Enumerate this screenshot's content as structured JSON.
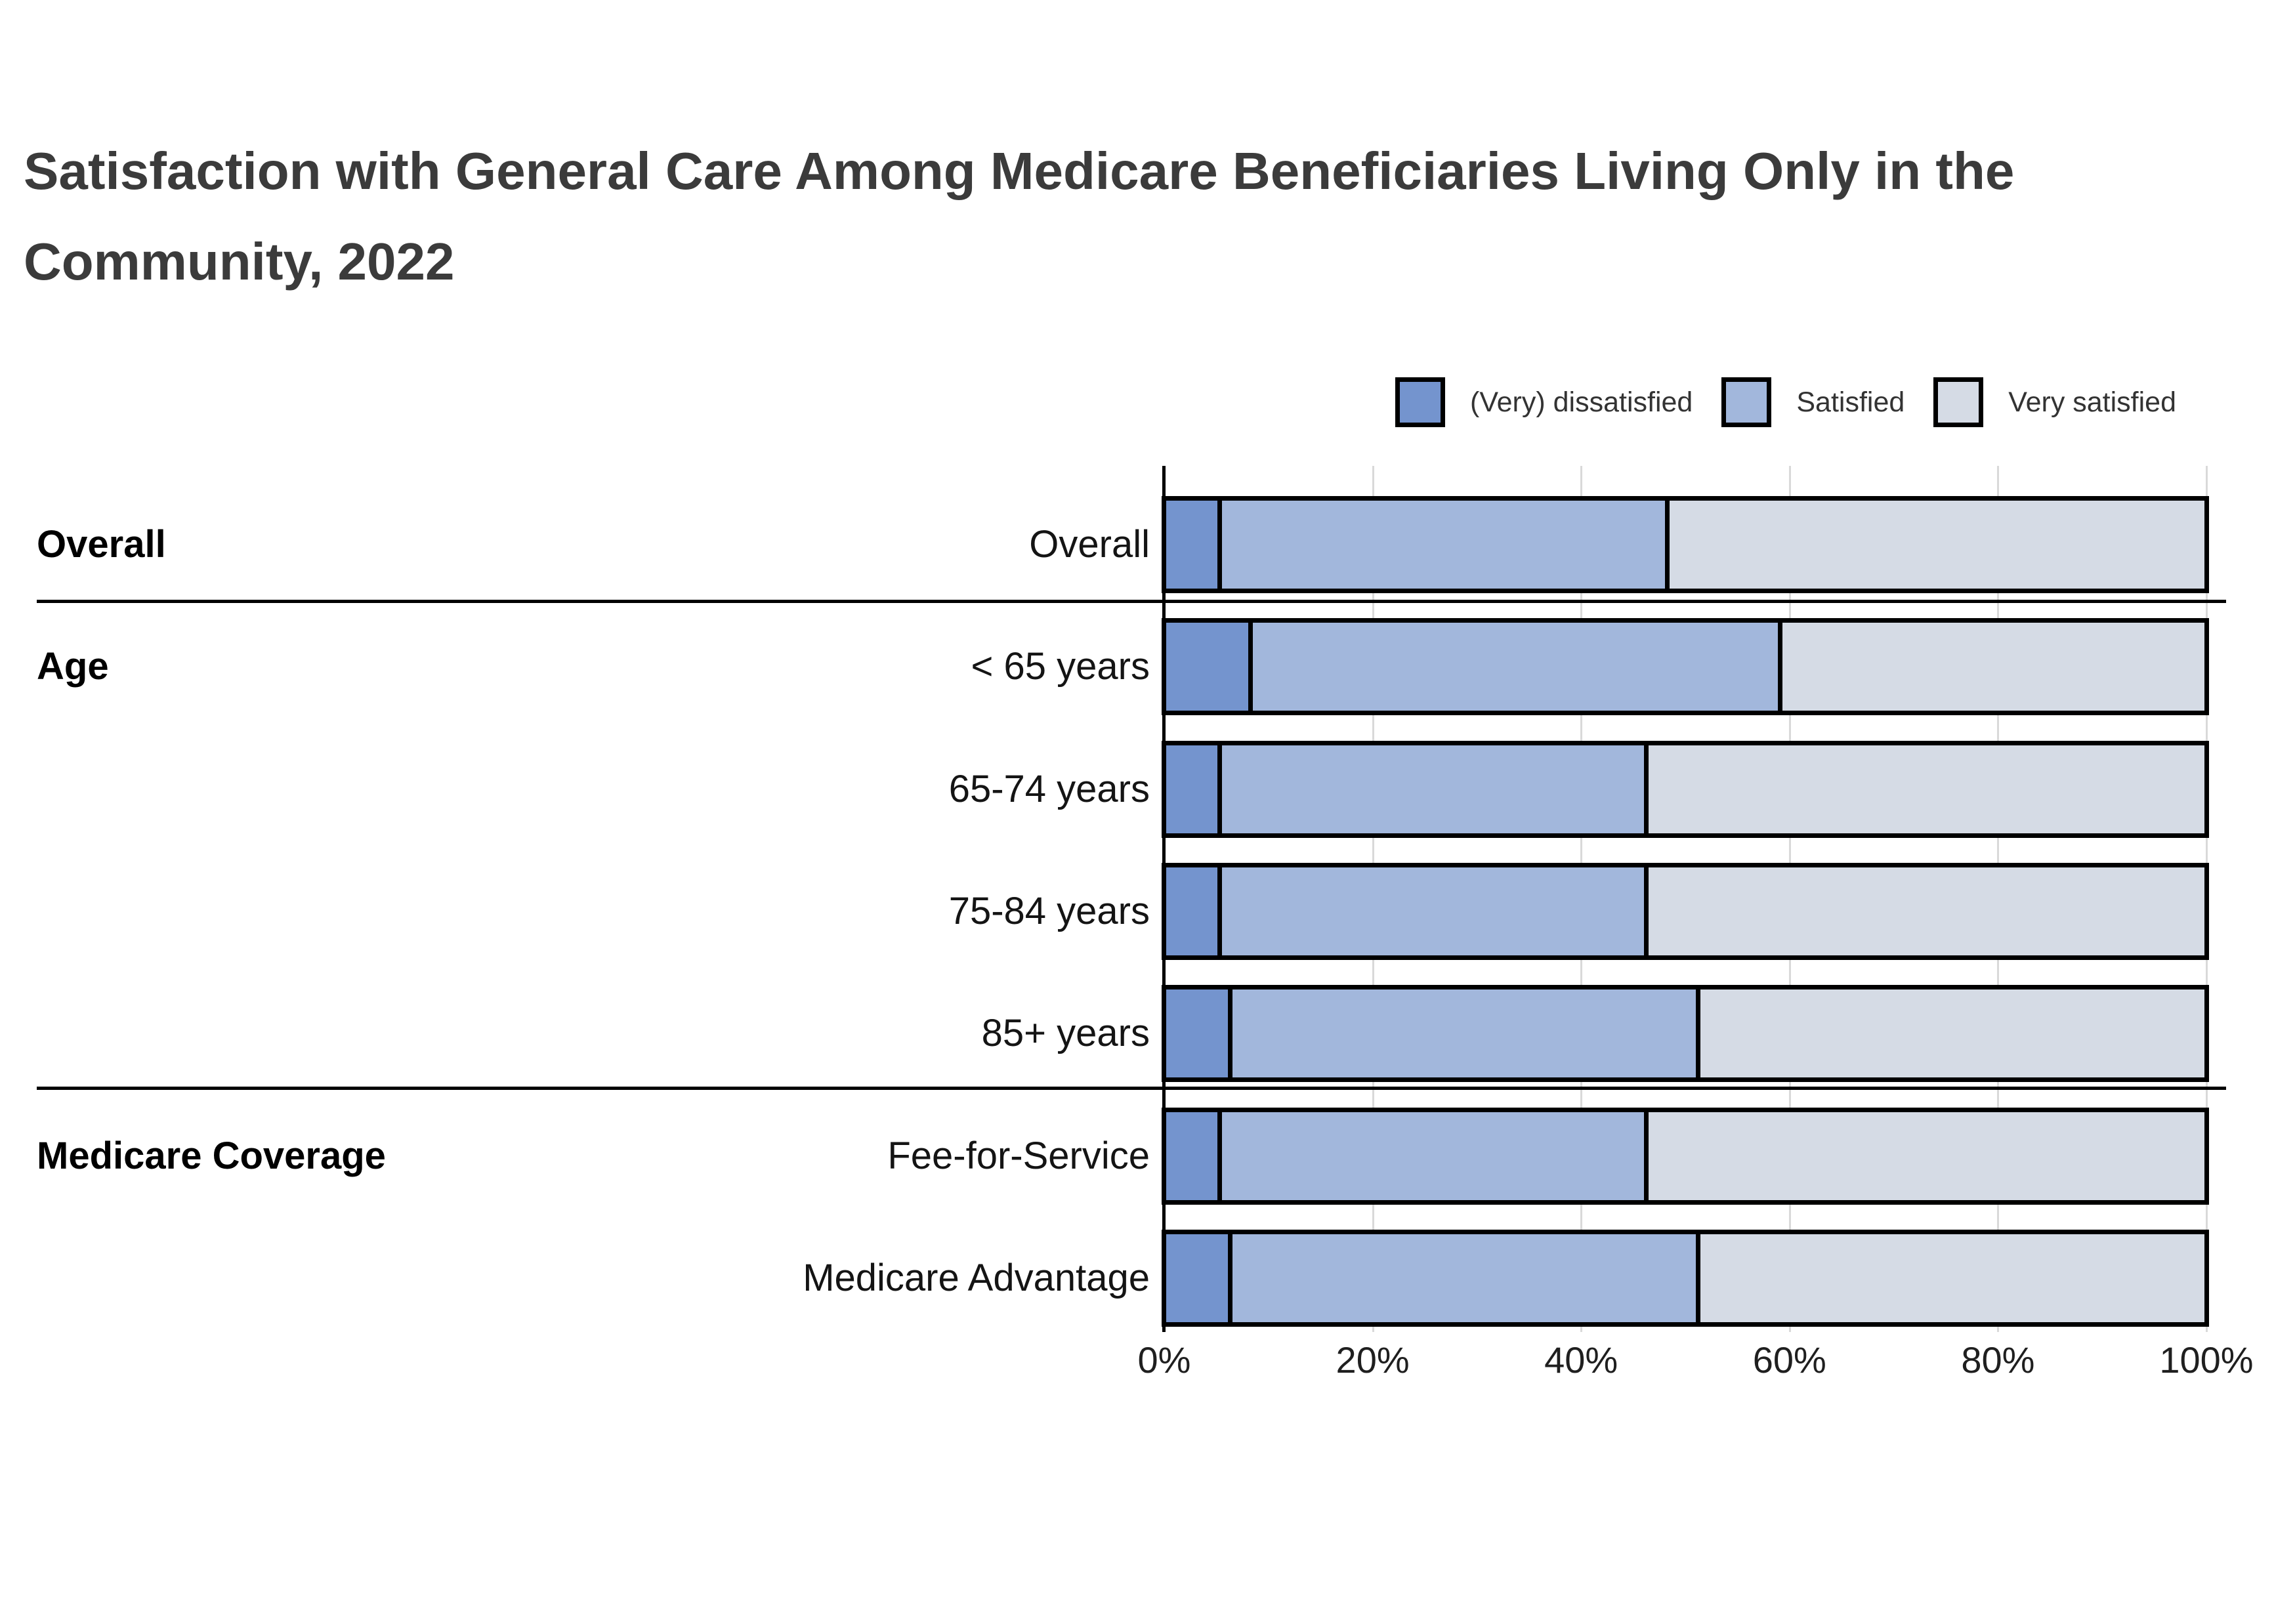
{
  "header": {
    "title_line1": "Satisfaction with General Care Among Medicare Beneficiaries Living Only in the",
    "title_line2": "Community, 2022"
  },
  "legend": [
    {
      "label": "(Very) dissatisfied",
      "color": "#7494CE"
    },
    {
      "label": "Satisfied",
      "color": "#A2B7DC"
    },
    {
      "label": "Very satisfied",
      "color": "#D5DBE5"
    }
  ],
  "colors": {
    "dissatisfied": "#7494CE",
    "satisfied": "#A2B7DC",
    "very_satisfied": "#D5DBE5",
    "bar_outline": "#000000",
    "gridline": "#d9d9d9",
    "title_text": "#3b3b3b"
  },
  "chart_data": {
    "type": "bar",
    "stacked": true,
    "orientation": "horizontal",
    "title": "Satisfaction with General Care Among Medicare Beneficiaries Living Only in the Community, 2022",
    "categories": [
      "Overall",
      "< 65 years",
      "65-74 years",
      "75-84 years",
      "85+ years",
      "Fee-for-Service",
      "Medicare Advantage"
    ],
    "row_groups": [
      {
        "label": "Overall",
        "row_indexes": [
          0
        ]
      },
      {
        "label": "Age",
        "row_indexes": [
          1,
          2,
          3,
          4
        ]
      },
      {
        "label": "Medicare Coverage",
        "row_indexes": [
          5,
          6
        ]
      }
    ],
    "series": [
      {
        "name": "(Very) dissatisfied",
        "color": "#7494CE",
        "values": [
          5,
          8,
          5,
          5,
          6,
          5,
          6
        ]
      },
      {
        "name": "Satisfied",
        "color": "#A2B7DC",
        "values": [
          43,
          51,
          41,
          41,
          45,
          41,
          45
        ]
      },
      {
        "name": "Very satisfied",
        "color": "#D5DBE5",
        "values": [
          52,
          41,
          54,
          54,
          49,
          54,
          49
        ]
      }
    ],
    "x_ticks": [
      "0%",
      "20%",
      "40%",
      "60%",
      "80%",
      "100%"
    ],
    "xlim": [
      0,
      100
    ],
    "grid": true,
    "legend_position": "top-right",
    "xlabel": "",
    "ylabel": ""
  }
}
